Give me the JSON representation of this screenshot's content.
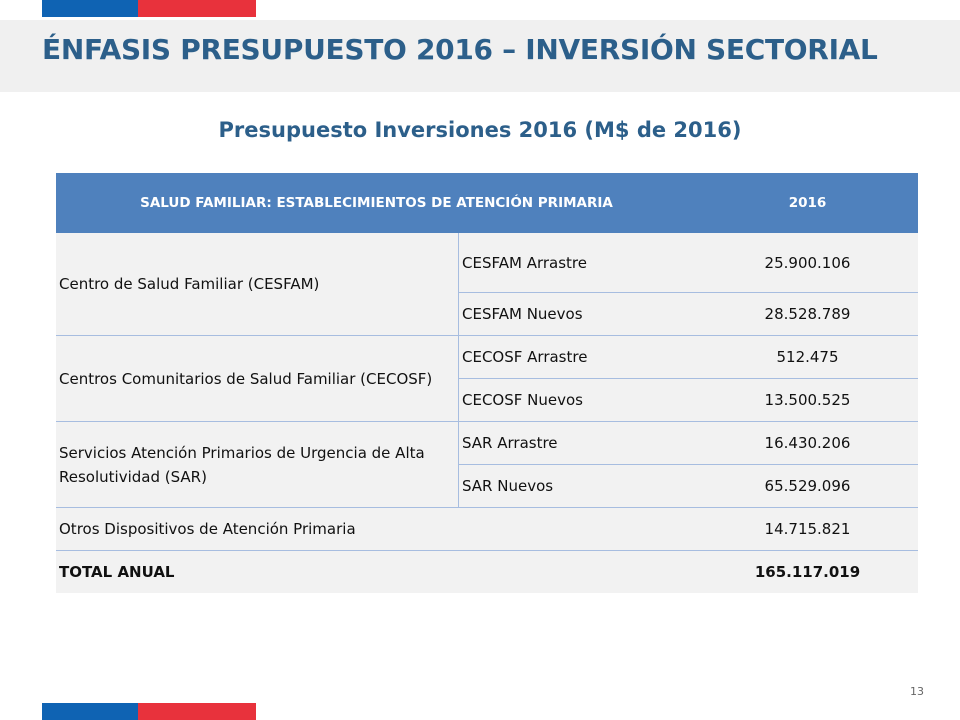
{
  "slide": {
    "title": "ÉNFASIS PRESUPUESTO 2016 – INVERSIÓN SECTORIAL",
    "subtitle": "Presupuesto Inversiones 2016 (M$ de 2016)",
    "page_number": "13"
  },
  "brand_colors": {
    "blue": "#0f63b3",
    "red": "#e8323c",
    "title": "#2c5f8a",
    "header": "#4f81bd"
  },
  "table": {
    "header": {
      "category": "SALUD FAMILIAR: ESTABLECIMIENTOS DE  ATENCIÓN PRIMARIA",
      "year": "2016"
    },
    "groups": [
      {
        "label": "Centro de Salud Familiar (CESFAM)",
        "rows": [
          {
            "label": "CESFAM Arrastre",
            "value": "25.900.106"
          },
          {
            "label": "CESFAM Nuevos",
            "value": "28.528.789"
          }
        ]
      },
      {
        "label": "Centros Comunitarios de Salud Familiar (CECOSF)",
        "rows": [
          {
            "label": "CECOSF Arrastre",
            "value": "512.475"
          },
          {
            "label": "CECOSF Nuevos",
            "value": "13.500.525"
          }
        ]
      },
      {
        "label": "Servicios Atención Primarios de Urgencia de Alta Resolutividad (SAR)",
        "rows": [
          {
            "label": "SAR Arrastre",
            "value": "16.430.206"
          },
          {
            "label": "SAR Nuevos",
            "value": "65.529.096"
          }
        ]
      }
    ],
    "other": {
      "label": "Otros Dispositivos de Atención Primaria",
      "value": "14.715.821"
    },
    "total": {
      "label": "TOTAL ANUAL",
      "value": "165.117.019"
    }
  }
}
